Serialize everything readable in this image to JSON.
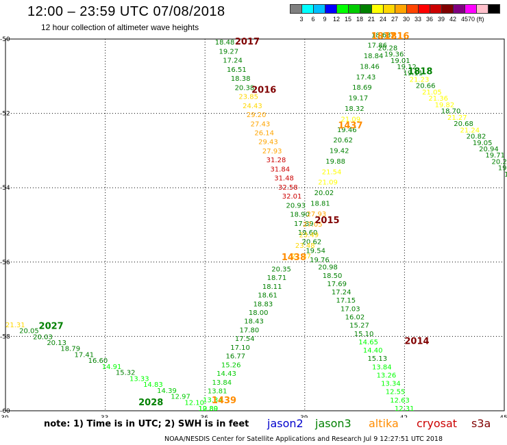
{
  "title": "12:00 – 23:59 UTC 07/08/2018",
  "subtitle": "12 hour collection of altimeter wave heights",
  "colorbar": {
    "labels": [
      "3",
      "6",
      "9",
      "12",
      "15",
      "18",
      "21",
      "24",
      "27",
      "30",
      "33",
      "36",
      "39",
      "42",
      "45",
      "70 (ft)"
    ],
    "colors": [
      "#808080",
      "#00ffff",
      "#00bfff",
      "#0000ff",
      "#00ff00",
      "#00cc00",
      "#008000",
      "#ffff00",
      "#ffd700",
      "#ffa500",
      "#ff4500",
      "#ff0000",
      "#cc0000",
      "#800000",
      "#800080",
      "#ff00ff",
      "#ffc0cb",
      "#000000"
    ]
  },
  "map": {
    "lat_ticks": [
      "-50",
      "-52",
      "-54",
      "-56",
      "-58",
      "-60"
    ],
    "lon_ticks": [
      "30",
      "33",
      "36",
      "39",
      "42",
      "45"
    ]
  },
  "track_labels": [
    {
      "text": "2017",
      "lon": 36.9,
      "lat": -50.15,
      "color": "#800000"
    },
    {
      "text": "2016",
      "lon": 37.4,
      "lat": -51.45,
      "color": "#800000"
    },
    {
      "text": "2015",
      "lon": 39.3,
      "lat": -54.95,
      "color": "#800000"
    },
    {
      "text": "1438",
      "lon": 38.3,
      "lat": -55.95,
      "color": "#ff8c00"
    },
    {
      "text": "1437",
      "lon": 40.0,
      "lat": -52.4,
      "color": "#ff8c00"
    },
    {
      "text": "1439",
      "lon": 36.2,
      "lat": -59.8,
      "color": "#ff8c00"
    },
    {
      "text": "1817",
      "lon": 41.0,
      "lat": -50.0,
      "color": "#ff8c00"
    },
    {
      "text": "1816",
      "lon": 41.4,
      "lat": -50.0,
      "color": "#ff8c00"
    },
    {
      "text": "1818",
      "lon": 42.1,
      "lat": -50.95,
      "color": "#008000"
    },
    {
      "text": "2014",
      "lon": 42.0,
      "lat": -58.2,
      "color": "#800000"
    },
    {
      "text": "2027",
      "lon": 31.0,
      "lat": -57.8,
      "color": "#008000"
    },
    {
      "text": "2028",
      "lon": 34.0,
      "lat": -59.85,
      "color": "#008000"
    }
  ],
  "track_A": {
    "lon_start": 36.3,
    "lat_start": -50.15,
    "lon_end": 39.15,
    "lat_end": -56.0,
    "values": [
      "18.48",
      "19.27",
      "17.24",
      "16.51",
      "18.38",
      "20.38",
      "23.85",
      "24.43",
      "29.20",
      "27.43",
      "26.14",
      "29.43",
      "27.93",
      "31.28",
      "31.84",
      "31.48",
      "32.58",
      "32.01",
      "20.93",
      "18.90",
      "17.89",
      "19.60",
      "20.62",
      "19.54",
      "19.76"
    ],
    "colors": [
      "#008000",
      "#008000",
      "#008000",
      "#008000",
      "#008000",
      "#008000",
      "#ffd700",
      "#ffd700",
      "#ffa500",
      "#ffa500",
      "#ffa500",
      "#ffa500",
      "#ffa500",
      "#cc0000",
      "#cc0000",
      "#cc0000",
      "#cc0000",
      "#cc0000",
      "#008000",
      "#008000",
      "#008000",
      "#008000",
      "#008000",
      "#008000",
      "#008000"
    ]
  },
  "track_B": {
    "lon_start": 38.0,
    "lat_start": -56.25,
    "lon_end": 35.8,
    "lat_end": -60.0,
    "values": [
      "20.35",
      "18.71",
      "18.11",
      "18.61",
      "18.83",
      "18.00",
      "18.43",
      "17.80",
      "17.54",
      "17.10",
      "16.77",
      "15.26",
      "14.43",
      "13.84",
      "13.81",
      "13.34",
      "12.80"
    ],
    "colors": [
      "#008000",
      "#008000",
      "#008000",
      "#008000",
      "#008000",
      "#008000",
      "#008000",
      "#008000",
      "#008000",
      "#008000",
      "#008000",
      "#00cc00",
      "#00cc00",
      "#00cc00",
      "#00cc00",
      "#00ff00",
      "#00ff00"
    ]
  },
  "track_C": {
    "lon_start": 38.6,
    "lat_start": -55.9,
    "lon_end": 41.0,
    "lat_end": -49.95,
    "values": [
      "21.37",
      "23.48",
      "23.49",
      "27.05",
      "27.93",
      "18.81",
      "20.02",
      "21.09",
      "21.54",
      "19.88",
      "19.42",
      "20.62",
      "19.46",
      "21.09",
      "18.32",
      "19.17",
      "18.69",
      "17.43",
      "18.46",
      "18.84",
      "17.86",
      "18.63"
    ],
    "colors": [
      "#ffd700",
      "#ffd700",
      "#ffd700",
      "#ffa500",
      "#ffa500",
      "#008000",
      "#008000",
      "#ffff00",
      "#ffff00",
      "#008000",
      "#008000",
      "#008000",
      "#008000",
      "#ffff00",
      "#008000",
      "#008000",
      "#008000",
      "#008000",
      "#008000",
      "#008000",
      "#008000",
      "#008000"
    ]
  },
  "track_D": {
    "lon_start": 41.2,
    "lat_start": -50.3,
    "lon_end": 45.0,
    "lat_end": -53.7,
    "values": [
      "20.28",
      "19.36",
      "19.01",
      "19.12",
      "19.11",
      "21.23",
      "20.66",
      "21.05",
      "21.36",
      "19.82",
      "18.70",
      "21.27",
      "20.68",
      "21.24",
      "20.82",
      "19.05",
      "20.94",
      "19.71",
      "20.25",
      "19.87",
      "19.7"
    ],
    "colors": [
      "#008000",
      "#008000",
      "#008000",
      "#008000",
      "#008000",
      "#ffff00",
      "#008000",
      "#ffff00",
      "#ffff00",
      "#ffff00",
      "#008000",
      "#ffff00",
      "#008000",
      "#ffff00",
      "#008000",
      "#008000",
      "#008000",
      "#008000",
      "#008000",
      "#008000",
      "#008000"
    ]
  },
  "track_E": {
    "lon_start": 39.4,
    "lat_start": -56.2,
    "lon_end": 41.7,
    "lat_end": -60.0,
    "values": [
      "20.98",
      "18.50",
      "17.69",
      "17.24",
      "17.15",
      "17.03",
      "16.02",
      "15.27",
      "15.10",
      "14.65",
      "14.40",
      "15.13",
      "13.84",
      "13.26",
      "13.34",
      "12.55",
      "12.63",
      "12.31"
    ],
    "colors": [
      "#008000",
      "#008000",
      "#008000",
      "#008000",
      "#008000",
      "#008000",
      "#008000",
      "#008000",
      "#008000",
      "#00ff00",
      "#00ff00",
      "#008000",
      "#00ff00",
      "#00ff00",
      "#00ff00",
      "#00ff00",
      "#00ff00",
      "#00ff00"
    ]
  },
  "track_F": {
    "lon_start": 30.0,
    "lat_start": -57.75,
    "lon_end": 35.8,
    "lat_end": -60.0,
    "values": [
      "21.31",
      "20.05",
      "20.03",
      "20.13",
      "18.79",
      "17.41",
      "16.60",
      "14.91",
      "15.32",
      "13.33",
      "14.83",
      "14.39",
      "12.97",
      "12.10",
      "10.89"
    ],
    "colors": [
      "#ffd700",
      "#008000",
      "#008000",
      "#008000",
      "#008000",
      "#008000",
      "#008000",
      "#00ff00",
      "#008000",
      "#00ff00",
      "#00ff00",
      "#00cc00",
      "#00cc00",
      "#00ff00",
      "#00ff00"
    ]
  },
  "note": "note: 1) Time is in UTC; 2) SWH is in feet",
  "legend": [
    {
      "name": "jason2",
      "color": "#0000cc"
    },
    {
      "name": "jason3",
      "color": "#008000"
    },
    {
      "name": "altika",
      "color": "#ff8c00"
    },
    {
      "name": "cryosat",
      "color": "#cc0000"
    },
    {
      "name": "s3a",
      "color": "#800000"
    }
  ],
  "credit": "NOAA/NESDIS Center for Satellite Applications and Research    Jul  9 12:27:51 UTC 2018"
}
